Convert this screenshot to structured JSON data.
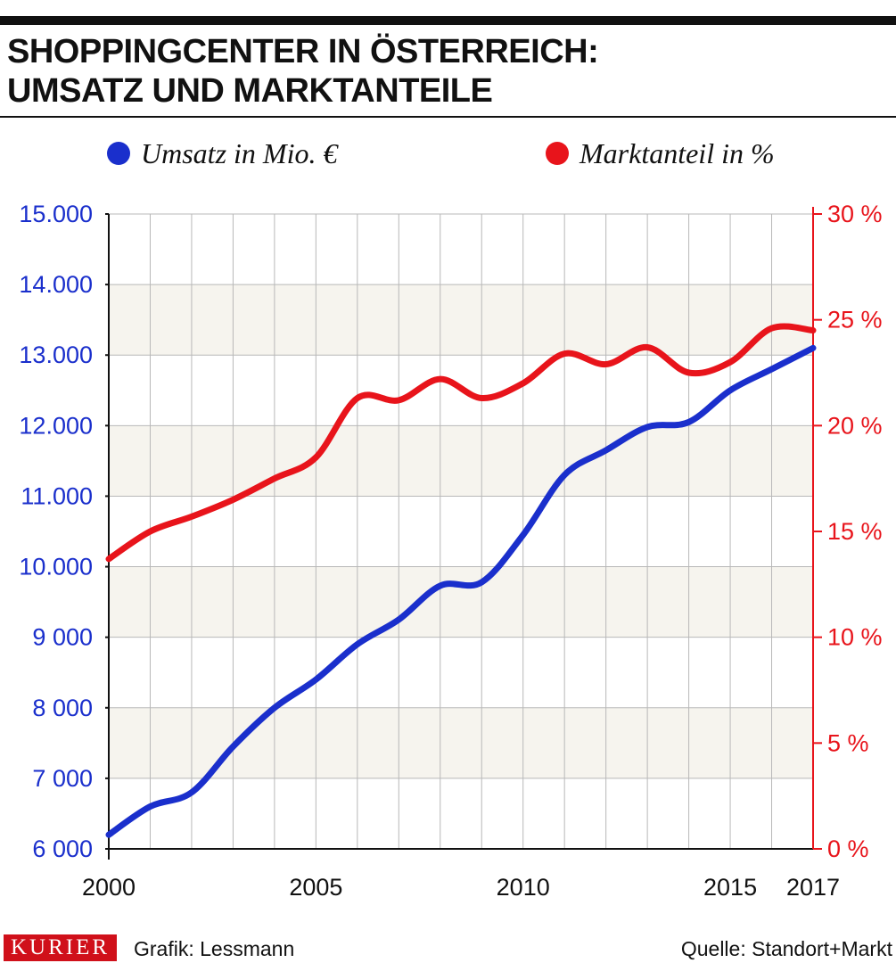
{
  "title_lines": [
    "SHOPPINGCENTER IN ÖSTERREICH:",
    "UMSATZ UND MARKTANTEILE"
  ],
  "legend": [
    {
      "label": "Umsatz in Mio. €",
      "color": "#1a2fcc"
    },
    {
      "label": "Marktanteil in %",
      "color": "#e8141b"
    }
  ],
  "footer": {
    "brand": "KURIER",
    "credit": "Grafik: Lessmann",
    "source": "Quelle: Standort+Markt"
  },
  "colors": {
    "blue": "#1a2fcc",
    "red": "#e8141b",
    "band": "#f6f4ee",
    "grid": "#b8b8b8",
    "axis": "#111111"
  },
  "chart_data": {
    "type": "line",
    "x": [
      2000,
      2001,
      2002,
      2003,
      2004,
      2005,
      2006,
      2007,
      2008,
      2009,
      2010,
      2011,
      2012,
      2013,
      2014,
      2015,
      2016,
      2017
    ],
    "xticks": [
      {
        "value": 2000,
        "label": "2000"
      },
      {
        "value": 2005,
        "label": "2005"
      },
      {
        "value": 2010,
        "label": "2010"
      },
      {
        "value": 2015,
        "label": "2015"
      },
      {
        "value": 2017,
        "label": "2017"
      }
    ],
    "xlim": [
      2000,
      2017
    ],
    "y_left": {
      "lim": [
        6000,
        15000
      ],
      "ticks": [
        {
          "value": 6000,
          "label": "6 000"
        },
        {
          "value": 7000,
          "label": "7 000"
        },
        {
          "value": 8000,
          "label": "8 000"
        },
        {
          "value": 9000,
          "label": "9 000"
        },
        {
          "value": 10000,
          "label": "10.000"
        },
        {
          "value": 11000,
          "label": "11.000"
        },
        {
          "value": 12000,
          "label": "12.000"
        },
        {
          "value": 13000,
          "label": "13.000"
        },
        {
          "value": 14000,
          "label": "14.000"
        },
        {
          "value": 15000,
          "label": "15.000"
        }
      ]
    },
    "y_right": {
      "lim": [
        0,
        30
      ],
      "ticks": [
        {
          "value": 0,
          "label": "0 %"
        },
        {
          "value": 5,
          "label": "5 %"
        },
        {
          "value": 10,
          "label": "10 %"
        },
        {
          "value": 15,
          "label": "15 %"
        },
        {
          "value": 20,
          "label": "20 %"
        },
        {
          "value": 25,
          "label": "25 %"
        },
        {
          "value": 30,
          "label": "30 %"
        }
      ]
    },
    "grid": true,
    "banded_background": true,
    "series": [
      {
        "name": "Umsatz in Mio. €",
        "axis": "left",
        "values": [
          6200,
          6600,
          6800,
          7450,
          8000,
          8400,
          8900,
          9250,
          9730,
          9780,
          10450,
          11300,
          11650,
          11980,
          12050,
          12500,
          12800,
          13100
        ]
      },
      {
        "name": "Marktanteil in %",
        "axis": "right",
        "values": [
          13.7,
          15.0,
          15.7,
          16.5,
          17.5,
          18.5,
          21.3,
          21.2,
          22.2,
          21.3,
          22.0,
          23.4,
          22.9,
          23.7,
          22.5,
          23.0,
          24.6,
          24.5
        ]
      }
    ]
  }
}
